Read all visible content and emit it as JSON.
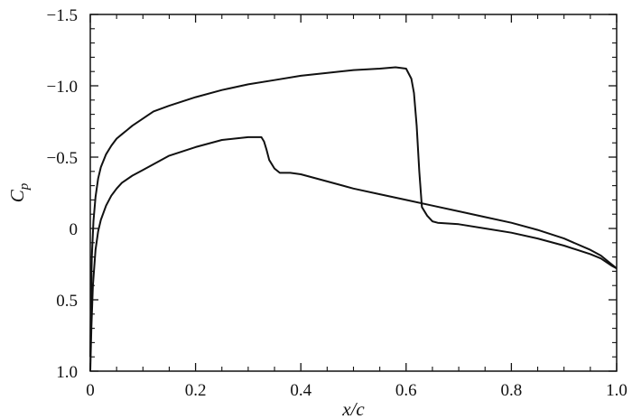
{
  "chart_data": {
    "type": "line",
    "title": "",
    "xlabel": "x/c",
    "ylabel_main": "C",
    "ylabel_sub": "p",
    "xlim": [
      0,
      1.0
    ],
    "ylim": [
      1.0,
      -1.5
    ],
    "y_inverted": true,
    "grid": false,
    "legend": "none",
    "x_ticks": [
      0,
      0.2,
      0.4,
      0.6,
      0.8,
      1.0
    ],
    "x_tick_labels": [
      "0",
      "0.2",
      "0.4",
      "0.6",
      "0.8",
      "1.0"
    ],
    "y_ticks": [
      -1.5,
      -1.0,
      -0.5,
      0,
      0.5,
      1.0
    ],
    "y_tick_labels": [
      "−1.5",
      "−1.0",
      "−0.5",
      "0",
      "0.5",
      "1.0"
    ],
    "line_color": "#111111",
    "series": [
      {
        "x": [
          0.0,
          0.001,
          0.003,
          0.006,
          0.01,
          0.015,
          0.02,
          0.03,
          0.04,
          0.05,
          0.06,
          0.07,
          0.08,
          0.1,
          0.12,
          0.15,
          0.2,
          0.25,
          0.3,
          0.35,
          0.4,
          0.45,
          0.5,
          0.55,
          0.58,
          0.6,
          0.61,
          0.615,
          0.62,
          0.625,
          0.63,
          0.64,
          0.65,
          0.66,
          0.7,
          0.75,
          0.8,
          0.85,
          0.9,
          0.95,
          0.97,
          0.99,
          1.0
        ],
        "y": [
          0.9,
          0.55,
          0.2,
          -0.05,
          -0.22,
          -0.35,
          -0.43,
          -0.52,
          -0.58,
          -0.63,
          -0.66,
          -0.69,
          -0.72,
          -0.77,
          -0.82,
          -0.86,
          -0.92,
          -0.97,
          -1.01,
          -1.04,
          -1.07,
          -1.09,
          -1.11,
          -1.12,
          -1.13,
          -1.12,
          -1.05,
          -0.95,
          -0.72,
          -0.4,
          -0.15,
          -0.09,
          -0.05,
          -0.04,
          -0.03,
          -0.0,
          0.03,
          0.07,
          0.12,
          0.18,
          0.21,
          0.26,
          0.28
        ]
      },
      {
        "x": [
          0.0,
          0.002,
          0.005,
          0.01,
          0.015,
          0.02,
          0.03,
          0.04,
          0.05,
          0.06,
          0.08,
          0.1,
          0.12,
          0.15,
          0.2,
          0.25,
          0.3,
          0.325,
          0.33,
          0.335,
          0.34,
          0.35,
          0.36,
          0.38,
          0.4,
          0.45,
          0.5,
          0.55,
          0.6,
          0.65,
          0.7,
          0.75,
          0.8,
          0.85,
          0.9,
          0.95,
          0.97,
          0.99,
          1.0
        ],
        "y": [
          1.0,
          0.7,
          0.4,
          0.15,
          0.02,
          -0.06,
          -0.16,
          -0.23,
          -0.28,
          -0.32,
          -0.37,
          -0.41,
          -0.45,
          -0.51,
          -0.57,
          -0.62,
          -0.64,
          -0.64,
          -0.61,
          -0.55,
          -0.48,
          -0.42,
          -0.39,
          -0.39,
          -0.38,
          -0.33,
          -0.28,
          -0.24,
          -0.2,
          -0.16,
          -0.12,
          -0.08,
          -0.04,
          0.01,
          0.07,
          0.15,
          0.19,
          0.25,
          0.28
        ]
      }
    ]
  }
}
